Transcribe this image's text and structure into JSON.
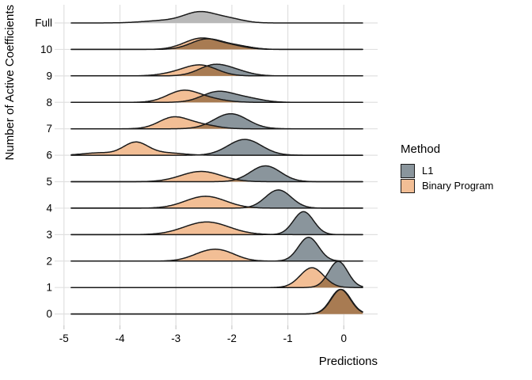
{
  "legend": {
    "title": "Method",
    "items": [
      {
        "label": "L1",
        "color": "#8A959C"
      },
      {
        "label": "Binary Program",
        "color": "#F2BE95"
      }
    ]
  },
  "colors": {
    "l1": "#8A959C",
    "bp": "#F2BE95",
    "full": "#B8B8B8",
    "overlap": "#A87B52",
    "grid": "#E0E0E0",
    "tick_mark": "#C9C9C9",
    "line": "#1A1A1A",
    "text": "#000000"
  },
  "chart_data": {
    "type": "area",
    "subtype": "ridgeline",
    "title": "",
    "xlabel": "Predictions",
    "ylabel": "Number of Active Coefficients",
    "xlim": [
      -4.87,
      0.34
    ],
    "x_ticks": [
      -5,
      -4,
      -3,
      -2,
      -1,
      0
    ],
    "x_tick_labels": [
      "-5",
      "-4",
      "-3",
      "-2",
      "-1",
      "0"
    ],
    "y_categories": [
      "Full",
      "10",
      "9",
      "8",
      "7",
      "6",
      "5",
      "4",
      "3",
      "2",
      "1",
      "0"
    ],
    "grid": true,
    "legend_position": "right",
    "rows": [
      {
        "label": "Full",
        "curves": [
          {
            "method": "Full",
            "fill": "full",
            "peak_x": -2.55,
            "components": [
              [
                -2.57,
                0.28,
                13
              ],
              [
                -2.05,
                0.26,
                5
              ],
              [
                -3.2,
                0.38,
                3
              ]
            ]
          }
        ]
      },
      {
        "label": "10",
        "curves": [
          {
            "method": "L1",
            "fill": "l1",
            "peak_x": -2.5,
            "components": [
              [
                -2.45,
                0.28,
                13
              ],
              [
                -1.9,
                0.26,
                4
              ]
            ]
          },
          {
            "method": "Binary Program",
            "fill": "bp",
            "peak_x": -2.55,
            "components": [
              [
                -2.55,
                0.3,
                14
              ],
              [
                -2.0,
                0.26,
                4
              ]
            ]
          }
        ]
      },
      {
        "label": "9",
        "curves": [
          {
            "method": "L1",
            "fill": "l1",
            "peak_x": -2.33,
            "components": [
              [
                -2.33,
                0.27,
                13
              ],
              [
                -1.92,
                0.26,
                5
              ]
            ]
          },
          {
            "method": "Binary Program",
            "fill": "bp",
            "peak_x": -2.55,
            "components": [
              [
                -2.55,
                0.29,
                13
              ],
              [
                -3.0,
                0.28,
                3
              ]
            ]
          }
        ]
      },
      {
        "label": "8",
        "curves": [
          {
            "method": "L1",
            "fill": "l1",
            "peak_x": -2.26,
            "components": [
              [
                -2.26,
                0.28,
                13
              ],
              [
                -1.74,
                0.28,
                5
              ]
            ]
          },
          {
            "method": "Binary Program",
            "fill": "bp",
            "peak_x": -2.88,
            "components": [
              [
                -2.88,
                0.28,
                14
              ],
              [
                -2.42,
                0.3,
                4
              ]
            ]
          }
        ]
      },
      {
        "label": "7",
        "curves": [
          {
            "method": "L1",
            "fill": "l1",
            "peak_x": -2.02,
            "components": [
              [
                -2.02,
                0.3,
                19
              ]
            ]
          },
          {
            "method": "Binary Program",
            "fill": "bp",
            "peak_x": -3.05,
            "components": [
              [
                -3.05,
                0.26,
                14
              ],
              [
                -2.56,
                0.28,
                5
              ]
            ]
          }
        ]
      },
      {
        "label": "6",
        "curves": [
          {
            "method": "L1",
            "fill": "l1",
            "peak_x": -1.77,
            "components": [
              [
                -1.77,
                0.3,
                20
              ]
            ]
          },
          {
            "method": "Binary Program",
            "fill": "bp",
            "peak_x": -3.72,
            "components": [
              [
                -3.72,
                0.22,
                16
              ],
              [
                -4.38,
                0.28,
                3
              ],
              [
                -3.18,
                0.3,
                3
              ]
            ]
          }
        ]
      },
      {
        "label": "5",
        "curves": [
          {
            "method": "L1",
            "fill": "l1",
            "peak_x": -1.4,
            "components": [
              [
                -1.4,
                0.27,
                20
              ]
            ]
          },
          {
            "method": "Binary Program",
            "fill": "bp",
            "peak_x": -2.55,
            "components": [
              [
                -2.55,
                0.36,
                13
              ]
            ]
          }
        ]
      },
      {
        "label": "4",
        "curves": [
          {
            "method": "L1",
            "fill": "l1",
            "peak_x": -1.17,
            "components": [
              [
                -1.17,
                0.23,
                23
              ]
            ]
          },
          {
            "method": "Binary Program",
            "fill": "bp",
            "peak_x": -2.47,
            "components": [
              [
                -2.47,
                0.36,
                15
              ]
            ]
          }
        ]
      },
      {
        "label": "3",
        "curves": [
          {
            "method": "L1",
            "fill": "l1",
            "peak_x": -0.72,
            "components": [
              [
                -0.72,
                0.18,
                29
              ]
            ]
          },
          {
            "method": "Binary Program",
            "fill": "bp",
            "peak_x": -2.45,
            "components": [
              [
                -2.45,
                0.4,
                16
              ]
            ]
          }
        ]
      },
      {
        "label": "2",
        "curves": [
          {
            "method": "L1",
            "fill": "l1",
            "peak_x": -0.63,
            "components": [
              [
                -0.63,
                0.18,
                30
              ]
            ]
          },
          {
            "method": "Binary Program",
            "fill": "bp",
            "peak_x": -2.3,
            "components": [
              [
                -2.45,
                0.28,
                10
              ],
              [
                -2.12,
                0.26,
                8
              ]
            ]
          }
        ]
      },
      {
        "label": "1",
        "curves": [
          {
            "method": "L1",
            "fill": "l1",
            "peak_x": -0.1,
            "components": [
              [
                -0.1,
                0.17,
                33
              ]
            ]
          },
          {
            "method": "Binary Program",
            "fill": "bp",
            "peak_x": -0.57,
            "components": [
              [
                -0.57,
                0.21,
                25
              ]
            ]
          }
        ]
      },
      {
        "label": "0",
        "curves": [
          {
            "method": "L1",
            "fill": "l1",
            "peak_x": -0.05,
            "components": [
              [
                -0.05,
                0.175,
                31
              ]
            ]
          },
          {
            "method": "Binary Program",
            "fill": "bp",
            "peak_x": -0.05,
            "components": [
              [
                -0.06,
                0.175,
                31
              ]
            ]
          }
        ]
      }
    ]
  }
}
